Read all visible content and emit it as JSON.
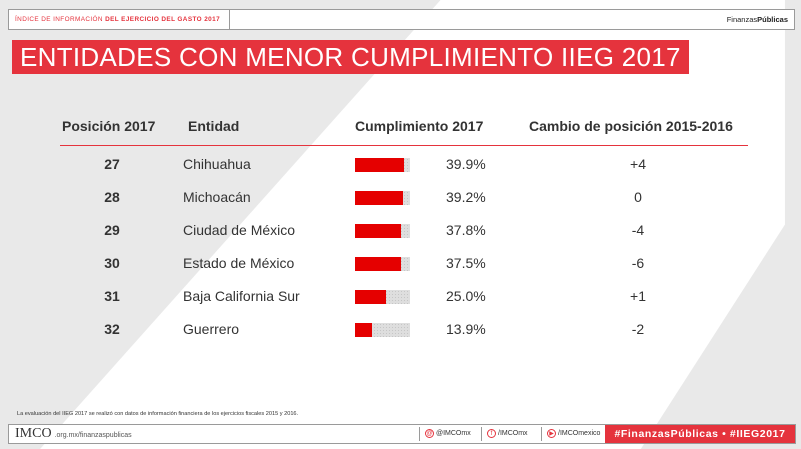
{
  "header": {
    "left_prefix": "ÍNDICE DE INFORMACIÓN",
    "left_emphasis": "DEL EJERCICIO DEL GASTO 2017",
    "right_regular": "Finanzas",
    "right_bold": "Públicas"
  },
  "title": "ENTIDADES CON MENOR CUMPLIMIENTO IIEG 2017",
  "table": {
    "columns": [
      "Posición 2017",
      "Entidad",
      "Cumplimiento 2017",
      "Cambio de posición 2015-2016"
    ],
    "rows": [
      {
        "pos": "27",
        "entity": "Chihuahua",
        "pct": "39.9%",
        "value": 39.9,
        "change": "+4"
      },
      {
        "pos": "28",
        "entity": "Michoacán",
        "pct": "39.2%",
        "value": 39.2,
        "change": "0"
      },
      {
        "pos": "29",
        "entity": "Ciudad de México",
        "pct": "37.8%",
        "value": 37.8,
        "change": "-4"
      },
      {
        "pos": "30",
        "entity": "Estado de México",
        "pct": "37.5%",
        "value": 37.5,
        "change": "-6"
      },
      {
        "pos": "31",
        "entity": "Baja California Sur",
        "pct": "25.0%",
        "value": 25.0,
        "change": "+1"
      },
      {
        "pos": "32",
        "entity": "Guerrero",
        "pct": "13.9%",
        "value": 13.9,
        "change": "-2"
      }
    ]
  },
  "note": "La evaluación del IIEG 2017 se realizó con datos de información financiera de los ejercicios fiscales 2015 y 2016.",
  "footer": {
    "logo": "IMCO",
    "url": ".org.mx/finanzaspublicas",
    "twitter": "@IMCOmx",
    "facebook": "/IMCOmx",
    "youtube": "/IMCOmexico",
    "hashtags": "#FinanzasPúblicas • #IIEG2017"
  },
  "colors": {
    "accent": "#e5333d",
    "bar": "#e50000"
  }
}
